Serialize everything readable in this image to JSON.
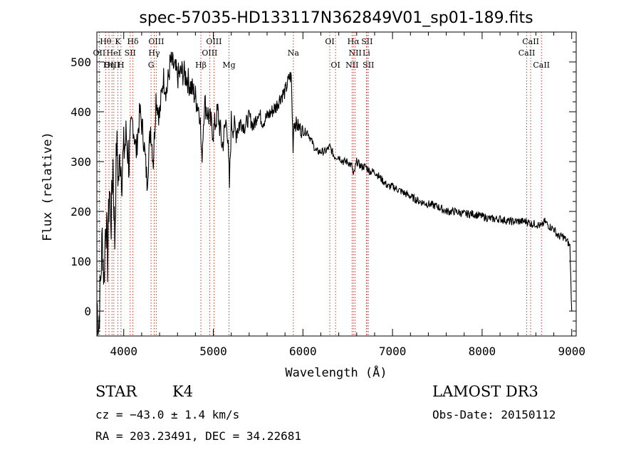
{
  "chart_data": {
    "type": "line",
    "title": "spec-57035-HD133117N362849V01_sp01-189.fits",
    "xlabel": "Wavelength (Å)",
    "ylabel": "Flux (relative)",
    "xlim": [
      3700,
      9050
    ],
    "ylim": [
      -50,
      560
    ],
    "xticks": [
      4000,
      5000,
      6000,
      7000,
      8000,
      9000
    ],
    "yticks": [
      0,
      100,
      200,
      300,
      400,
      500
    ],
    "grid": false,
    "line_color": "#000000",
    "marker_color": "#c0392b",
    "series": [
      {
        "name": "flux",
        "x": [
          3700,
          3720,
          3740,
          3760,
          3780,
          3800,
          3820,
          3840,
          3860,
          3880,
          3900,
          3920,
          3940,
          3960,
          3980,
          4000,
          4030,
          4060,
          4100,
          4140,
          4180,
          4220,
          4260,
          4300,
          4330,
          4360,
          4400,
          4440,
          4480,
          4520,
          4560,
          4600,
          4650,
          4700,
          4750,
          4800,
          4850,
          4870,
          4900,
          4950,
          5000,
          5050,
          5100,
          5150,
          5180,
          5200,
          5250,
          5300,
          5350,
          5400,
          5450,
          5500,
          5550,
          5600,
          5650,
          5700,
          5750,
          5800,
          5850,
          5870,
          5890,
          5900,
          5950,
          6000,
          6050,
          6100,
          6150,
          6200,
          6250,
          6300,
          6350,
          6400,
          6450,
          6500,
          6550,
          6563,
          6600,
          6650,
          6700,
          6750,
          6800,
          6850,
          6900,
          6950,
          7000,
          7100,
          7200,
          7300,
          7400,
          7500,
          7600,
          7700,
          7800,
          7900,
          8000,
          8100,
          8200,
          8300,
          8400,
          8500,
          8550,
          8600,
          8662,
          8700,
          8750,
          8800,
          8850,
          8900,
          8950,
          8980,
          9000
        ],
        "y": [
          20,
          -30,
          50,
          150,
          60,
          200,
          100,
          250,
          180,
          300,
          140,
          340,
          260,
          310,
          280,
          320,
          350,
          300,
          380,
          320,
          400,
          350,
          260,
          370,
          300,
          430,
          390,
          470,
          440,
          500,
          490,
          470,
          480,
          470,
          450,
          430,
          400,
          300,
          420,
          390,
          360,
          400,
          330,
          390,
          250,
          380,
          360,
          380,
          370,
          390,
          370,
          400,
          380,
          390,
          400,
          410,
          430,
          440,
          470,
          470,
          330,
          380,
          370,
          360,
          360,
          340,
          320,
          320,
          320,
          330,
          310,
          310,
          300,
          300,
          290,
          270,
          300,
          290,
          290,
          280,
          280,
          270,
          260,
          250,
          250,
          240,
          230,
          220,
          215,
          210,
          200,
          200,
          195,
          195,
          190,
          185,
          185,
          180,
          180,
          180,
          175,
          175,
          170,
          180,
          170,
          165,
          150,
          150,
          140,
          130,
          0
        ]
      }
    ],
    "line_markers": [
      {
        "label": "Hθ",
        "x": 3798,
        "row": 1
      },
      {
        "label": "OII",
        "x": 3727,
        "row": 2
      },
      {
        "label": "OIII",
        "x": 3869,
        "row": 3
      },
      {
        "label": "HeI",
        "x": 3889,
        "row": 2
      },
      {
        "label": "Hη",
        "x": 3835,
        "row": 3
      },
      {
        "label": "K",
        "x": 3934,
        "row": 1
      },
      {
        "label": "SII",
        "x": 4072,
        "row": 2
      },
      {
        "label": "H",
        "x": 3969,
        "row": 3
      },
      {
        "label": "Hδ",
        "x": 4102,
        "row": 1
      },
      {
        "label": "OIII",
        "x": 4363,
        "row": 1
      },
      {
        "label": "Hγ",
        "x": 4340,
        "row": 2
      },
      {
        "label": "G",
        "x": 4305,
        "row": 3
      },
      {
        "label": "Hβ",
        "x": 4861,
        "row": 3
      },
      {
        "label": "OIII",
        "x": 5007,
        "row": 1
      },
      {
        "label": "OIII",
        "x": 4959,
        "row": 2
      },
      {
        "label": "Mg",
        "x": 5175,
        "row": 3
      },
      {
        "label": "Na",
        "x": 5893,
        "row": 2
      },
      {
        "label": "OI",
        "x": 6300,
        "row": 1
      },
      {
        "label": "OI",
        "x": 6364,
        "row": 3
      },
      {
        "label": "Hα",
        "x": 6563,
        "row": 1
      },
      {
        "label": "NII",
        "x": 6583,
        "row": 2
      },
      {
        "label": "NII",
        "x": 6548,
        "row": 3
      },
      {
        "label": "SII",
        "x": 6716,
        "row": 1
      },
      {
        "label": "Li",
        "x": 6708,
        "row": 2
      },
      {
        "label": "SII",
        "x": 6731,
        "row": 3
      },
      {
        "label": "CaII",
        "x": 8542,
        "row": 1
      },
      {
        "label": "CaII",
        "x": 8498,
        "row": 2
      },
      {
        "label": "CaII",
        "x": 8662,
        "row": 3
      }
    ]
  },
  "info": {
    "object_class": "STAR",
    "subclass": "K4",
    "survey": "LAMOST DR3",
    "redshift_line": "cz = −43.0 ± 1.4 km/s",
    "obs_date_line": "Obs-Date: 20150112",
    "coords_line": "RA = 203.23491, DEC =  34.22681"
  }
}
